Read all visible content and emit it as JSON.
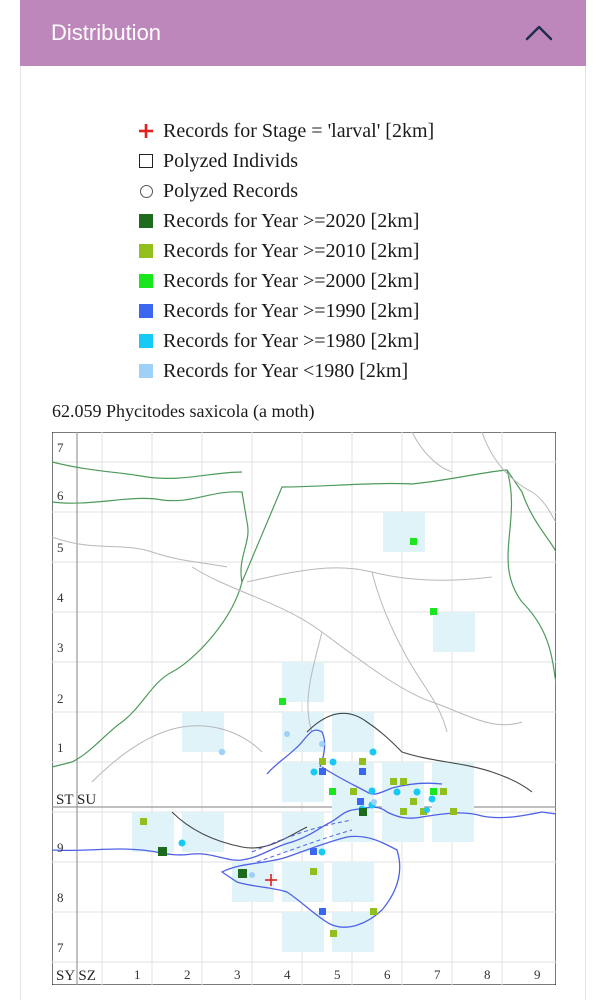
{
  "header": {
    "title": "Distribution",
    "toggle_icon": "chevron-up-icon"
  },
  "legend": [
    {
      "kind": "plus",
      "color": "#e0211d",
      "label": "Records for Stage = 'larval' [2km]"
    },
    {
      "kind": "outline-square",
      "color": "#222222",
      "label": "Polyzed Individs"
    },
    {
      "kind": "outline-circle",
      "color": "#555555",
      "label": "Polyzed Records"
    },
    {
      "kind": "square",
      "color": "#1d6b1d",
      "label": "Records for Year >=2020 [2km]"
    },
    {
      "kind": "square",
      "color": "#93bf1c",
      "label": "Records for Year >=2010 [2km]"
    },
    {
      "kind": "square",
      "color": "#19e61c",
      "label": "Records for Year >=2000 [2km]"
    },
    {
      "kind": "square",
      "color": "#3a66f0",
      "label": "Records for Year >=1990 [2km]"
    },
    {
      "kind": "square",
      "color": "#17c9f5",
      "label": "Records for Year >=1980 [2km]"
    },
    {
      "kind": "square",
      "color": "#9fd0f7",
      "label": "Records for Year <1980 [2km]"
    }
  ],
  "map": {
    "species": "62.059 Phycitodes saxicola (a moth)",
    "left_labels": [
      "7",
      "6",
      "5",
      "4",
      "3",
      "2",
      "1",
      "9",
      "8",
      "7"
    ],
    "bottom_labels": [
      "1",
      "2",
      "3",
      "4",
      "5",
      "6",
      "7",
      "8",
      "9"
    ],
    "square_label_north": "ST SU",
    "square_label_south": "SY SZ"
  }
}
